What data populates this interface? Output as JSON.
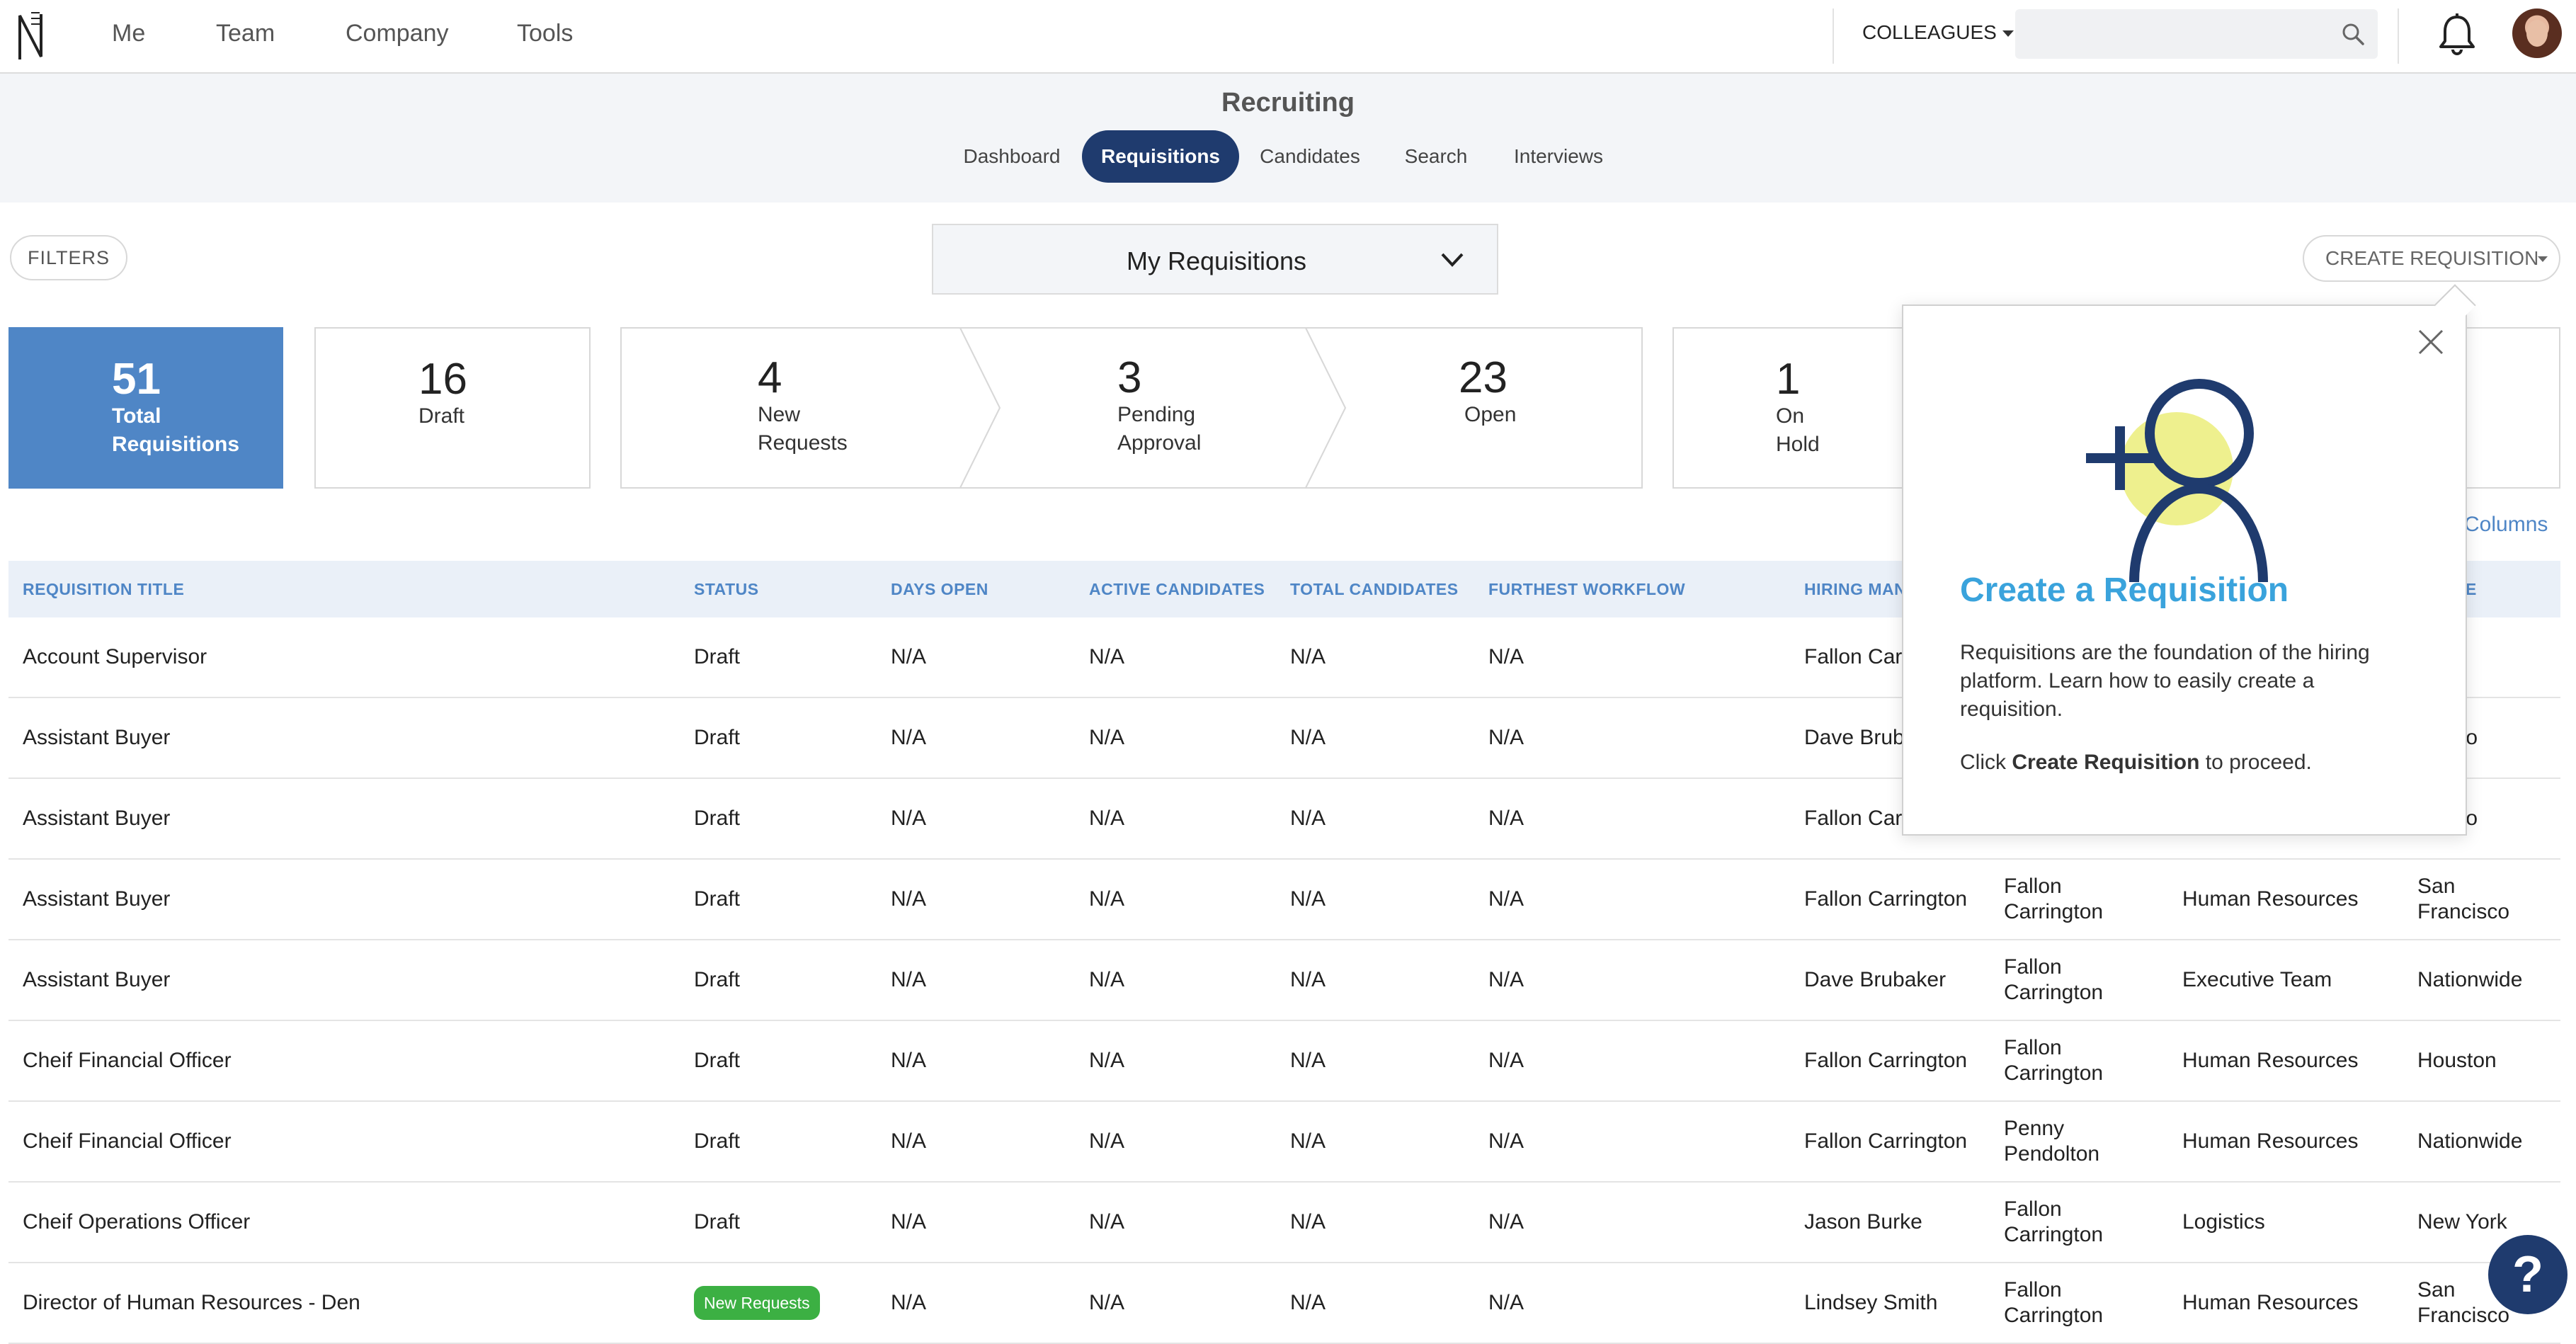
{
  "nav": {
    "items": [
      "Me",
      "Team",
      "Company",
      "Tools"
    ],
    "colleagues_label": "COLLEAGUES",
    "search_placeholder": ""
  },
  "subheader": {
    "title": "Recruiting",
    "tabs": [
      "Dashboard",
      "Requisitions",
      "Candidates",
      "Search",
      "Interviews"
    ],
    "active_tab": "Requisitions"
  },
  "controls": {
    "filters_label": "FILTERS",
    "view_selected": "My Requisitions",
    "create_label": "CREATE REQUISITION"
  },
  "summary": {
    "total": {
      "num": "51",
      "l1": "Total",
      "l2": "Requisitions"
    },
    "draft": {
      "num": "16",
      "l1": "Draft"
    },
    "new_requests": {
      "num": "4",
      "l1": "New",
      "l2": "Requests"
    },
    "pending": {
      "num": "3",
      "l1": "Pending",
      "l2": "Approval"
    },
    "open": {
      "num": "23",
      "l1": "Open"
    },
    "on_hold": {
      "num": "1",
      "l1": "On",
      "l2": "Hold"
    }
  },
  "columns_link": "Columns",
  "table": {
    "headers": [
      "REQUISITION TITLE",
      "STATUS",
      "DAYS OPEN",
      "ACTIVE CANDIDATES",
      "TOTAL CANDIDATES",
      "FURTHEST WORKFLOW",
      "HIRING MAN",
      "E"
    ],
    "rows": [
      {
        "title": "Account Supervisor",
        "status": "Draft",
        "days": "N/A",
        "active": "N/A",
        "total": "N/A",
        "workflow": "N/A",
        "hm": "Fallon Car",
        "rec1": "",
        "rec2": "",
        "dept": "",
        "loc1": "cago",
        "loc2": ""
      },
      {
        "title": "Assistant Buyer",
        "status": "Draft",
        "days": "N/A",
        "active": "N/A",
        "total": "N/A",
        "workflow": "N/A",
        "hm": "Dave Brub",
        "rec1": "",
        "rec2": "",
        "dept": "",
        "loc1": "ncisco",
        "loc2": ""
      },
      {
        "title": "Assistant Buyer",
        "status": "Draft",
        "days": "N/A",
        "active": "N/A",
        "total": "N/A",
        "workflow": "N/A",
        "hm": "Fallon Car",
        "rec1": "",
        "rec2": "",
        "dept": "",
        "loc1": "ncisco",
        "loc2": ""
      },
      {
        "title": "Assistant Buyer",
        "status": "Draft",
        "days": "N/A",
        "active": "N/A",
        "total": "N/A",
        "workflow": "N/A",
        "hm": "Fallon Carrington",
        "rec1": "Fallon",
        "rec2": "Carrington",
        "dept": "Human Resources",
        "loc1": "San",
        "loc2": "Francisco"
      },
      {
        "title": "Assistant Buyer",
        "status": "Draft",
        "days": "N/A",
        "active": "N/A",
        "total": "N/A",
        "workflow": "N/A",
        "hm": "Dave Brubaker",
        "rec1": "Fallon",
        "rec2": "Carrington",
        "dept": "Executive Team",
        "loc1": "Nationwide",
        "loc2": ""
      },
      {
        "title": "Cheif Financial Officer",
        "status": "Draft",
        "days": "N/A",
        "active": "N/A",
        "total": "N/A",
        "workflow": "N/A",
        "hm": "Fallon Carrington",
        "rec1": "Fallon",
        "rec2": "Carrington",
        "dept": "Human Resources",
        "loc1": "Houston",
        "loc2": ""
      },
      {
        "title": "Cheif Financial Officer",
        "status": "Draft",
        "days": "N/A",
        "active": "N/A",
        "total": "N/A",
        "workflow": "N/A",
        "hm": "Fallon Carrington",
        "rec1": "Penny",
        "rec2": "Pendolton",
        "dept": "Human Resources",
        "loc1": "Nationwide",
        "loc2": ""
      },
      {
        "title": "Cheif Operations Officer",
        "status": "Draft",
        "days": "N/A",
        "active": "N/A",
        "total": "N/A",
        "workflow": "N/A",
        "hm": "Jason Burke",
        "rec1": "Fallon",
        "rec2": "Carrington",
        "dept": "Logistics",
        "loc1": "New York",
        "loc2": ""
      },
      {
        "title": "Director of Human Resources - Den",
        "status": "New Requests",
        "days": "N/A",
        "active": "N/A",
        "total": "N/A",
        "workflow": "N/A",
        "hm": "Lindsey Smith",
        "rec1": "Fallon",
        "rec2": "Carrington",
        "dept": "Human Resources",
        "loc1": "San",
        "loc2": "Francisco"
      }
    ]
  },
  "popover": {
    "title": "Create a Requisition",
    "body": "Requisitions are the foundation of the hiring platform. Learn how to easily create a requisition.",
    "cta_prefix": "Click ",
    "cta_bold": "Create Requisition",
    "cta_suffix": " to proceed."
  },
  "help_label": "?",
  "colors": {
    "primary": "#1f3b6e",
    "accent": "#4f86c6",
    "title_blue": "#3aa3dc",
    "success": "#3cb043",
    "illustration_yellow": "#eef08e"
  },
  "icons": [
    "logo-icon",
    "caret-down-icon",
    "search-icon",
    "bell-icon",
    "chevron-down-icon",
    "close-icon",
    "add-user-icon",
    "help-icon"
  ]
}
